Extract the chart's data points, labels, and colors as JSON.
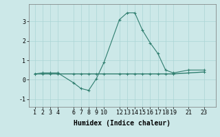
{
  "line1_x": [
    1,
    2,
    3,
    4,
    6,
    7,
    8,
    9,
    10,
    12,
    13,
    14,
    15,
    16,
    17,
    18,
    19,
    21,
    23
  ],
  "line1_y": [
    0.3,
    0.35,
    0.35,
    0.35,
    -0.15,
    -0.45,
    -0.55,
    0.05,
    0.9,
    3.1,
    3.45,
    3.45,
    2.55,
    1.9,
    1.35,
    0.5,
    0.35,
    0.5,
    0.5
  ],
  "line2_x": [
    1,
    2,
    3,
    4,
    6,
    7,
    8,
    9,
    10,
    12,
    13,
    14,
    15,
    16,
    17,
    18,
    19,
    21,
    23
  ],
  "line2_y": [
    0.3,
    0.3,
    0.3,
    0.3,
    0.3,
    0.3,
    0.3,
    0.3,
    0.3,
    0.3,
    0.3,
    0.3,
    0.3,
    0.3,
    0.3,
    0.3,
    0.3,
    0.35,
    0.4
  ],
  "line_color": "#2e7d6e",
  "bg_color": "#cce8e8",
  "grid_color": "#aad4d4",
  "xlabel": "Humidex (Indice chaleur)",
  "xticks": [
    1,
    2,
    3,
    4,
    6,
    7,
    8,
    9,
    10,
    12,
    13,
    14,
    15,
    16,
    17,
    18,
    19,
    21,
    23
  ],
  "yticks": [
    -1,
    0,
    1,
    2,
    3
  ],
  "ylim": [
    -1.4,
    3.9
  ],
  "xlim": [
    0.2,
    24.5
  ],
  "xlabel_fontsize": 7,
  "tick_fontsize": 6,
  "figwidth": 3.2,
  "figheight": 2.0,
  "dpi": 100
}
